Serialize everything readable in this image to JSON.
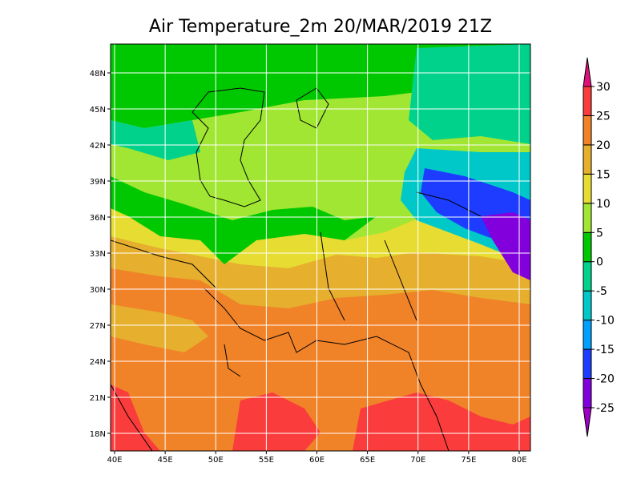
{
  "map": {
    "title": "Air Temperature_2m 20/MAR/2019 21Z",
    "lon_ticks": [
      {
        "value": 40,
        "label": "40E"
      },
      {
        "value": 45,
        "label": "45E"
      },
      {
        "value": 50,
        "label": "50E"
      },
      {
        "value": 55,
        "label": "55E"
      },
      {
        "value": 60,
        "label": "60E"
      },
      {
        "value": 65,
        "label": "65E"
      },
      {
        "value": 70,
        "label": "70E"
      },
      {
        "value": 75,
        "label": "75E"
      },
      {
        "value": 80,
        "label": "80E"
      }
    ],
    "lat_ticks": [
      {
        "value": 18,
        "label": "18N"
      },
      {
        "value": 21,
        "label": "21N"
      },
      {
        "value": 24,
        "label": "24N"
      },
      {
        "value": 27,
        "label": "27N"
      },
      {
        "value": 30,
        "label": "30N"
      },
      {
        "value": 33,
        "label": "33N"
      },
      {
        "value": 36,
        "label": "36N"
      },
      {
        "value": 39,
        "label": "39N"
      },
      {
        "value": 42,
        "label": "42N"
      },
      {
        "value": 45,
        "label": "45N"
      },
      {
        "value": 48,
        "label": "48N"
      }
    ],
    "colorbar": {
      "levels": [
        -25,
        -20,
        -15,
        -10,
        -5,
        0,
        5,
        10,
        15,
        20,
        25,
        30
      ],
      "colors": [
        "#a000c8",
        "#8200dc",
        "#1e3cff",
        "#00a0ff",
        "#00c8c8",
        "#00d28c",
        "#00c800",
        "#a0e632",
        "#e6dc32",
        "#e6af2d",
        "#f08228",
        "#fa3c3c",
        "#e0107a"
      ]
    }
  }
}
